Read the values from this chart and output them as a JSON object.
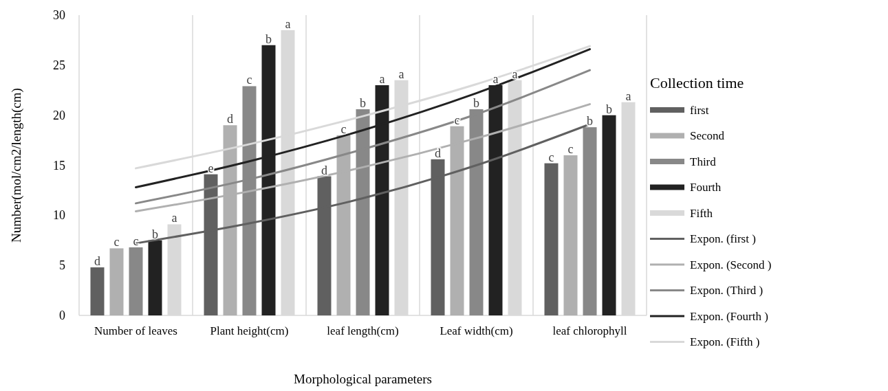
{
  "chart_data": {
    "type": "bar",
    "xlabel": "Morphological parameters",
    "ylabel": "Number(mol/cm2/length(cm)",
    "legend_title": "Collection time",
    "legend": "right",
    "grid": "x",
    "categories": [
      "Number of leaves",
      "Plant height(cm)",
      "leaf length(cm)",
      "Leaf width(cm)",
      "leaf chlorophyll"
    ],
    "ylim": [
      0,
      30
    ],
    "yticks": [
      0,
      5,
      10,
      15,
      20,
      25,
      30
    ],
    "series": [
      {
        "name": "first",
        "color": "#606060",
        "values": [
          4.8,
          14.1,
          13.9,
          15.6,
          15.2
        ],
        "value_labels": [
          "d",
          "e",
          "d",
          "d",
          "c"
        ]
      },
      {
        "name": "Second",
        "color": "#b0b0b0",
        "values": [
          6.7,
          19.0,
          18.0,
          18.9,
          16.0
        ],
        "value_labels": [
          "c",
          "d",
          "c",
          "c",
          "c"
        ]
      },
      {
        "name": "Third",
        "color": "#888888",
        "values": [
          6.8,
          22.9,
          20.6,
          20.6,
          18.8
        ],
        "value_labels": [
          "c",
          "c",
          "b",
          "b",
          "b"
        ]
      },
      {
        "name": "Fourth",
        "color": "#222222",
        "values": [
          7.5,
          27.0,
          23.0,
          23.0,
          20.0
        ],
        "value_labels": [
          "b",
          "b",
          "a",
          "a",
          "b"
        ]
      },
      {
        "name": "Fifth",
        "color": "#d9d9d9",
        "values": [
          9.1,
          28.5,
          23.5,
          23.5,
          21.3
        ],
        "value_labels": [
          "a",
          "a",
          "a",
          "a",
          "a"
        ]
      },
      {
        "name": "Expon. (first )",
        "type": "line",
        "color": "#606060",
        "values": [
          7.2,
          9.2,
          11.7,
          15.0,
          19.1
        ]
      },
      {
        "name": "Expon. (Second )",
        "type": "line",
        "color": "#b0b0b0",
        "values": [
          10.4,
          12.4,
          14.8,
          17.7,
          21.1
        ]
      },
      {
        "name": "Expon. (Third  )",
        "type": "line",
        "color": "#888888",
        "values": [
          11.2,
          13.6,
          16.6,
          20.1,
          24.5
        ]
      },
      {
        "name": "Expon. (Fourth  )",
        "type": "line",
        "color": "#222222",
        "values": [
          12.8,
          15.4,
          18.5,
          22.2,
          26.6
        ]
      },
      {
        "name": "Expon. (Fifth  )",
        "type": "line",
        "color": "#d9d9d9",
        "values": [
          14.7,
          17.1,
          19.9,
          23.1,
          26.9
        ]
      }
    ]
  }
}
